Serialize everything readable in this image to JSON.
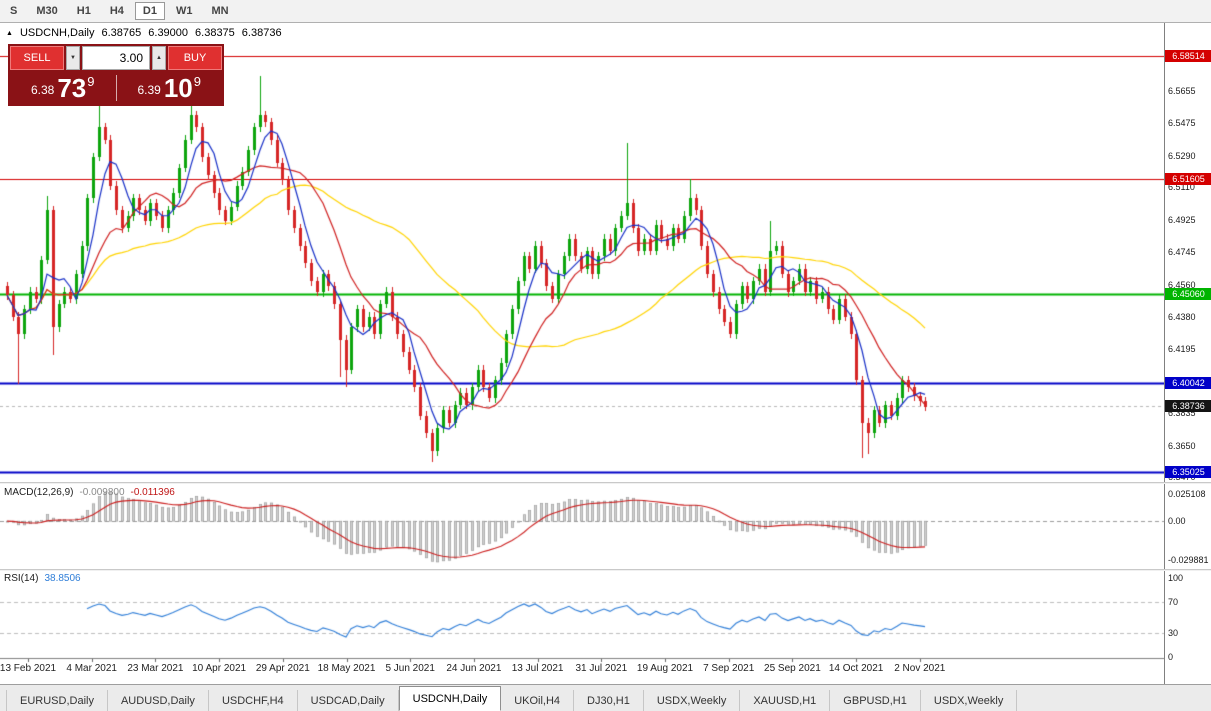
{
  "toolbar": {
    "timeframes": [
      {
        "label": "S",
        "active": false
      },
      {
        "label": "M30",
        "active": false
      },
      {
        "label": "H1",
        "active": false
      },
      {
        "label": "H4",
        "active": false
      },
      {
        "label": "D1",
        "active": true
      },
      {
        "label": "W1",
        "active": false
      },
      {
        "label": "MN",
        "active": false
      }
    ]
  },
  "quote_header": {
    "symbol": "USDCNH,Daily",
    "open": "6.38765",
    "high": "6.39000",
    "low": "6.38375",
    "close": "6.38736"
  },
  "trade_panel": {
    "sell_label": "SELL",
    "buy_label": "BUY",
    "volume": "3.00",
    "bid": {
      "prefix": "6.38",
      "big": "73",
      "sup": "9"
    },
    "ask": {
      "prefix": "6.39",
      "big": "10",
      "sup": "9"
    },
    "panel_color": "#8a1216",
    "button_color": "#e03030"
  },
  "chart_data": {
    "type": "candlestick",
    "symbol": "USDCNH",
    "timeframe": "Daily",
    "price_axis": {
      "max": 6.604,
      "min": 6.345,
      "ticks": [
        "6.5655",
        "6.5475",
        "6.5290",
        "6.5110",
        "6.4925",
        "6.4745",
        "6.4560",
        "6.4380",
        "6.4195",
        "6.4015",
        "6.3835",
        "6.3650",
        "6.3470"
      ]
    },
    "levels": [
      {
        "value": 6.58514,
        "label": "6.58514",
        "color": "#d40000",
        "width": 1
      },
      {
        "value": 6.51605,
        "label": "6.51605",
        "color": "#d40000",
        "width": 1
      },
      {
        "value": 6.4506,
        "label": "6.45060",
        "color": "#00b400",
        "width": 2
      },
      {
        "value": 6.40042,
        "label": "6.40042",
        "color": "#0000c8",
        "width": 2
      },
      {
        "value": 6.35025,
        "label": "6.35025",
        "color": "#0000c8",
        "width": 2
      }
    ],
    "current_price": {
      "value": 6.38736,
      "label": "6.38736",
      "color": "#141414"
    },
    "candles": {
      "first_open": 6.455,
      "wick": 0.0025,
      "up_color": "#0da50d",
      "down_color": "#d62626",
      "closes": [
        6.45,
        6.438,
        6.428,
        6.442,
        6.452,
        6.448,
        6.47,
        6.498,
        6.432,
        6.445,
        6.452,
        6.448,
        6.462,
        6.478,
        6.505,
        6.528,
        6.545,
        6.538,
        6.512,
        6.498,
        6.488,
        6.495,
        6.505,
        6.498,
        6.492,
        6.502,
        6.495,
        6.488,
        6.498,
        6.508,
        6.522,
        6.538,
        6.552,
        6.545,
        6.528,
        6.518,
        6.508,
        6.498,
        6.492,
        6.5,
        6.512,
        6.52,
        6.532,
        6.545,
        6.552,
        6.548,
        6.538,
        6.525,
        6.515,
        6.498,
        6.488,
        6.478,
        6.468,
        6.458,
        6.452,
        6.462,
        6.455,
        6.445,
        6.425,
        6.408,
        6.432,
        6.442,
        6.432,
        6.438,
        6.428,
        6.445,
        6.452,
        6.438,
        6.428,
        6.418,
        6.408,
        6.398,
        6.382,
        6.372,
        6.362,
        6.375,
        6.385,
        6.378,
        6.388,
        6.395,
        6.388,
        6.398,
        6.408,
        6.398,
        6.392,
        6.402,
        6.412,
        6.428,
        6.442,
        6.458,
        6.472,
        6.465,
        6.478,
        6.468,
        6.455,
        6.448,
        6.462,
        6.472,
        6.482,
        6.472,
        6.465,
        6.475,
        6.462,
        6.472,
        6.482,
        6.475,
        6.488,
        6.495,
        6.502,
        6.488,
        6.475,
        6.482,
        6.475,
        6.49,
        6.482,
        6.478,
        6.488,
        6.482,
        6.495,
        6.505,
        6.498,
        6.478,
        6.462,
        6.452,
        6.442,
        6.435,
        6.428,
        6.445,
        6.455,
        6.448,
        6.458,
        6.465,
        6.452,
        6.475,
        6.478,
        6.462,
        6.452,
        6.458,
        6.465,
        6.452,
        6.458,
        6.448,
        6.452,
        6.442,
        6.436,
        6.448,
        6.438,
        6.428,
        6.402,
        6.378,
        6.372,
        6.385,
        6.378,
        6.388,
        6.382,
        6.392,
        6.402,
        6.398,
        6.393,
        6.39,
        6.387
      ],
      "wick_overrides": {
        "2": {
          "l": 6.4
        },
        "7": {
          "h": 6.506
        },
        "8": {
          "l": 6.416
        },
        "16": {
          "h": 6.558
        },
        "32": {
          "h": 6.566
        },
        "44": {
          "h": 6.574
        },
        "58": {
          "l": 6.404
        },
        "59": {
          "l": 6.398
        },
        "74": {
          "l": 6.356
        },
        "108": {
          "h": 6.536
        },
        "119": {
          "h": 6.516
        },
        "133": {
          "h": 6.492
        },
        "149": {
          "l": 6.358
        },
        "150": {
          "l": 6.36
        }
      }
    },
    "moving_averages": [
      {
        "period": 5,
        "color": "#1830c8"
      },
      {
        "period": 13,
        "color": "#d02020"
      },
      {
        "period": 40,
        "color": "#ffd400"
      }
    ],
    "x_axis": {
      "dates": [
        "13 Feb 2021",
        "4 Mar 2021",
        "23 Mar 2021",
        "10 Apr 2021",
        "29 Apr 2021",
        "18 May 2021",
        "5 Jun 2021",
        "24 Jun 2021",
        "13 Jul 2021",
        "31 Jul 2021",
        "19 Aug 2021",
        "7 Sep 2021",
        "25 Sep 2021",
        "14 Oct 2021",
        "2 Nov 2021"
      ]
    },
    "macd": {
      "name": "MACD(12,26,9)",
      "value": "-0.009800",
      "signal": "-0.011396",
      "fast": 12,
      "slow": 26,
      "signal_period": 9,
      "scale_top": "0.025108",
      "scale_zero": "0.00",
      "scale_bottom": "-0.029881",
      "hist_color": "#d0d0d0",
      "hist_border": "#8f8f8f",
      "line_color": "#cc1f1f"
    },
    "rsi": {
      "name": "RSI(14)",
      "value": "38.8506",
      "period": 14,
      "levels": [
        "100",
        "70",
        "30",
        "0"
      ],
      "line_color": "#2f7ed8"
    }
  },
  "tabs": [
    {
      "label": "EURUSD,Daily",
      "active": false
    },
    {
      "label": "AUDUSD,Daily",
      "active": false
    },
    {
      "label": "USDCHF,H4",
      "active": false
    },
    {
      "label": "USDCAD,Daily",
      "active": false
    },
    {
      "label": "USDCNH,Daily",
      "active": true
    },
    {
      "label": "UKOil,H4",
      "active": false
    },
    {
      "label": "DJ30,H1",
      "active": false
    },
    {
      "label": "USDX,Weekly",
      "active": false
    },
    {
      "label": "XAUUSD,H1",
      "active": false
    },
    {
      "label": "GBPUSD,H1",
      "active": false
    },
    {
      "label": "USDX,Weekly",
      "active": false
    }
  ]
}
